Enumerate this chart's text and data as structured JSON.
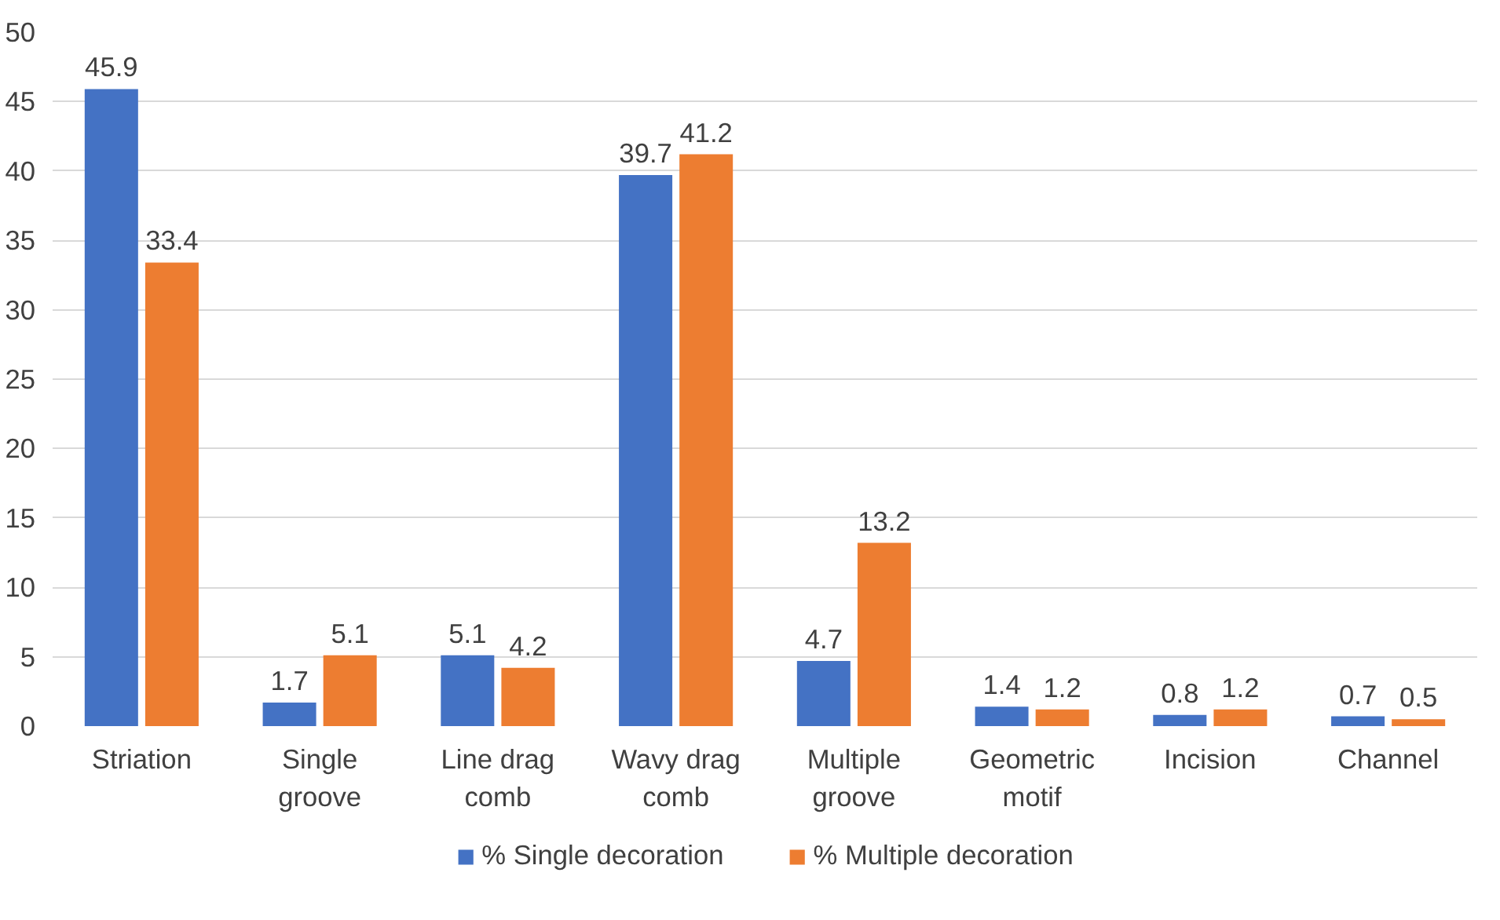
{
  "chart_data": {
    "type": "bar",
    "categories": [
      "Striation",
      "Single\ngroove",
      "Line drag\ncomb",
      "Wavy drag\ncomb",
      "Multiple\ngroove",
      "Geometric\nmotif",
      "Incision",
      "Channel"
    ],
    "series": [
      {
        "name": "% Single decoration",
        "color": "#4472c4",
        "values": [
          45.9,
          1.7,
          5.1,
          39.7,
          4.7,
          1.4,
          0.8,
          0.7
        ]
      },
      {
        "name": "% Multiple decoration",
        "color": "#ed7d31",
        "values": [
          33.4,
          5.1,
          4.2,
          41.2,
          13.2,
          1.2,
          1.2,
          0.5
        ]
      }
    ],
    "ylim": [
      0,
      50
    ],
    "yticks": [
      0,
      5,
      10,
      15,
      20,
      25,
      30,
      35,
      40,
      45,
      50
    ],
    "grid": "y",
    "legend": "bottom",
    "data_labels": true
  }
}
